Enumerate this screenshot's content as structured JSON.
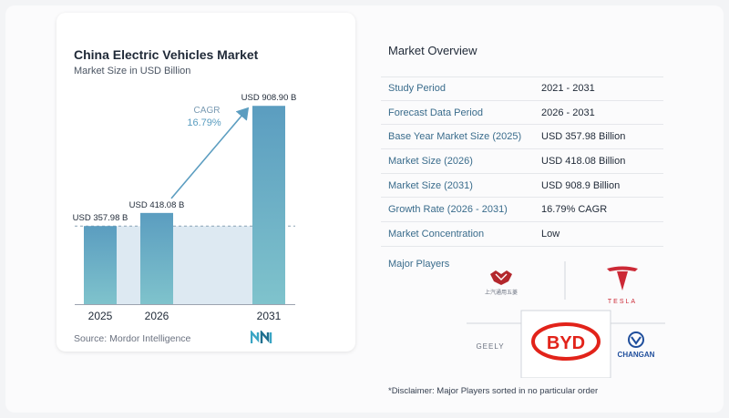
{
  "chart_card": {
    "title": "China Electric Vehicles Market",
    "subtitle": "Market Size in USD Billion",
    "source": "Source:  Mordor Intelligence"
  },
  "chart_data": {
    "type": "bar",
    "title": "China Electric Vehicles Market",
    "subtitle": "Market Size in USD Billion",
    "categories": [
      "2025",
      "2026",
      "2031"
    ],
    "values": [
      357.98,
      418.08,
      908.9
    ],
    "data_labels": [
      "USD 357.98 B",
      "USD 418.08 B",
      "USD 908.90 B"
    ],
    "ylim": [
      0,
      960
    ],
    "cagr_label": "CAGR",
    "cagr_value": "16.79%",
    "grid": false,
    "colors": {
      "bar": "#5b9dc0",
      "bar_light": "#7fc3cc",
      "shade": "#dde9f2",
      "arrow": "#5b9dc0"
    }
  },
  "overview": {
    "title": "Market Overview",
    "rows": [
      {
        "label": "Study Period",
        "value": "2021 - 2031"
      },
      {
        "label": "Forecast Data Period",
        "value": "2026 - 2031"
      },
      {
        "label": "Base Year Market Size (2025)",
        "value": "USD 357.98 Billion"
      },
      {
        "label": "Market Size (2026)",
        "value": "USD 418.08 Billion"
      },
      {
        "label": "Market Size (2031)",
        "value": "USD 908.9 Billion"
      },
      {
        "label": "Growth Rate (2026 - 2031)",
        "value": "16.79% CAGR"
      },
      {
        "label": "Market Concentration",
        "value": "Low"
      }
    ]
  },
  "players": {
    "label": "Major Players",
    "names": [
      "BYD",
      "TESLA",
      "GEELY",
      "CHANGAN",
      "上汽通用五菱"
    ],
    "colors": {
      "byd": "#e2231a",
      "tesla": "#cc2936",
      "changan": "#1f4e9c"
    }
  },
  "disclaimer": "*Disclaimer: Major Players sorted in no particular order"
}
